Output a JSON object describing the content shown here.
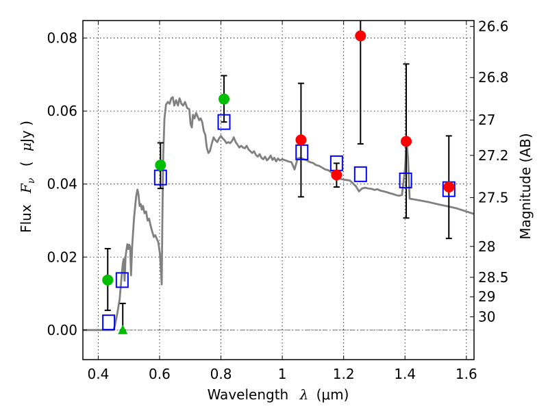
{
  "chart_data": {
    "type": "scatter",
    "title": "",
    "xlabel": "Wavelength  λ (μm)",
    "xlabel_parts": {
      "text": "Wavelength",
      "symbol": "λ",
      "unit": "(μm)"
    },
    "ylabel": "Flux  Fν  ( μJy )",
    "ylabel_parts": {
      "text": "Flux",
      "symbol": "F",
      "subscript": "ν",
      "unit_open": "(",
      "unit_mu": "μ",
      "unit_rest": "Jy )"
    },
    "y2label": "Magnitude (AB)",
    "xlim": [
      0.35,
      1.625
    ],
    "ylim": [
      -0.0081,
      0.0848
    ],
    "grid": true,
    "xticks": [
      0.4,
      0.6,
      0.8,
      1.0,
      1.2,
      1.4,
      1.6
    ],
    "xtick_labels": [
      "0.4",
      "0.6",
      "0.8",
      "1",
      "1.2",
      "1.4",
      "1.6"
    ],
    "yticks": [
      0.0,
      0.02,
      0.04,
      0.06,
      0.08
    ],
    "ytick_labels": [
      "0.00",
      "0.02",
      "0.04",
      "0.06",
      "0.08"
    ],
    "y2ticks_mag": [
      26.6,
      26.8,
      27,
      27.2,
      27.5,
      28,
      28.5,
      29,
      30
    ],
    "y2tick_labels": [
      "26.6",
      "26.8",
      "27",
      "27.2",
      "27.5",
      "28",
      "28.5",
      "29",
      "30"
    ],
    "mag_zeropoint_ujy": 23.9,
    "colors": {
      "model": "#808080",
      "green": "#00bf00",
      "red": "#ff0000",
      "blue": "#0000ff",
      "errorbar": "#000000"
    },
    "series": [
      {
        "name": "model-spectrum",
        "kind": "line",
        "points": [
          [
            0.35,
            0.0
          ],
          [
            0.4,
            0.0
          ],
          [
            0.45,
            0.0
          ],
          [
            0.455,
            0.0015
          ],
          [
            0.462,
            0.0045
          ],
          [
            0.47,
            0.0085
          ],
          [
            0.477,
            0.0155
          ],
          [
            0.48,
            0.018
          ],
          [
            0.483,
            0.0195
          ],
          [
            0.486,
            0.0135
          ],
          [
            0.489,
            0.02
          ],
          [
            0.492,
            0.022
          ],
          [
            0.495,
            0.0235
          ],
          [
            0.498,
            0.0222
          ],
          [
            0.501,
            0.0234
          ],
          [
            0.504,
            0.0228
          ],
          [
            0.507,
            0.015
          ],
          [
            0.511,
            0.0235
          ],
          [
            0.517,
            0.031
          ],
          [
            0.524,
            0.0368
          ],
          [
            0.528,
            0.0385
          ],
          [
            0.531,
            0.0372
          ],
          [
            0.535,
            0.034
          ],
          [
            0.539,
            0.0345
          ],
          [
            0.542,
            0.033
          ],
          [
            0.546,
            0.034
          ],
          [
            0.551,
            0.032
          ],
          [
            0.556,
            0.0325
          ],
          [
            0.561,
            0.03
          ],
          [
            0.566,
            0.0305
          ],
          [
            0.571,
            0.0285
          ],
          [
            0.576,
            0.027
          ],
          [
            0.581,
            0.0255
          ],
          [
            0.586,
            0.026
          ],
          [
            0.591,
            0.025
          ],
          [
            0.596,
            0.024
          ],
          [
            0.601,
            0.021
          ],
          [
            0.604,
            0.017
          ],
          [
            0.607,
            0.0125
          ],
          [
            0.609,
            0.03
          ],
          [
            0.612,
            0.048
          ],
          [
            0.616,
            0.058
          ],
          [
            0.621,
            0.0618
          ],
          [
            0.627,
            0.0625
          ],
          [
            0.633,
            0.062
          ],
          [
            0.638,
            0.0635
          ],
          [
            0.643,
            0.0638
          ],
          [
            0.648,
            0.0615
          ],
          [
            0.654,
            0.063
          ],
          [
            0.66,
            0.0615
          ],
          [
            0.665,
            0.0635
          ],
          [
            0.671,
            0.062
          ],
          [
            0.677,
            0.0615
          ],
          [
            0.683,
            0.0625
          ],
          [
            0.69,
            0.0608
          ],
          [
            0.697,
            0.0605
          ],
          [
            0.701,
            0.0565
          ],
          [
            0.705,
            0.0555
          ],
          [
            0.709,
            0.059
          ],
          [
            0.714,
            0.058
          ],
          [
            0.719,
            0.0595
          ],
          [
            0.724,
            0.0585
          ],
          [
            0.729,
            0.0575
          ],
          [
            0.734,
            0.058
          ],
          [
            0.739,
            0.057
          ],
          [
            0.744,
            0.0545
          ],
          [
            0.749,
            0.0535
          ],
          [
            0.754,
            0.05
          ],
          [
            0.759,
            0.0485
          ],
          [
            0.764,
            0.049
          ],
          [
            0.77,
            0.051
          ],
          [
            0.776,
            0.0528
          ],
          [
            0.782,
            0.052
          ],
          [
            0.788,
            0.0515
          ],
          [
            0.794,
            0.0525
          ],
          [
            0.8,
            0.0532
          ],
          [
            0.806,
            0.0525
          ],
          [
            0.812,
            0.052
          ],
          [
            0.818,
            0.0512
          ],
          [
            0.824,
            0.0515
          ],
          [
            0.83,
            0.0512
          ],
          [
            0.836,
            0.0518
          ],
          [
            0.842,
            0.0528
          ],
          [
            0.848,
            0.0515
          ],
          [
            0.854,
            0.0508
          ],
          [
            0.86,
            0.05
          ],
          [
            0.866,
            0.0505
          ],
          [
            0.872,
            0.05
          ],
          [
            0.878,
            0.0498
          ],
          [
            0.884,
            0.0505
          ],
          [
            0.89,
            0.0495
          ],
          [
            0.896,
            0.049
          ],
          [
            0.902,
            0.0485
          ],
          [
            0.908,
            0.049
          ],
          [
            0.914,
            0.048
          ],
          [
            0.92,
            0.0475
          ],
          [
            0.926,
            0.0482
          ],
          [
            0.932,
            0.0472
          ],
          [
            0.938,
            0.0468
          ],
          [
            0.944,
            0.0475
          ],
          [
            0.95,
            0.0465
          ],
          [
            0.956,
            0.047
          ],
          [
            0.962,
            0.0478
          ],
          [
            0.968,
            0.0466
          ],
          [
            0.974,
            0.0472
          ],
          [
            0.98,
            0.0462
          ],
          [
            0.986,
            0.047
          ],
          [
            0.992,
            0.0465
          ],
          [
            1.0,
            0.0468
          ],
          [
            1.01,
            0.0465
          ],
          [
            1.02,
            0.0462
          ],
          [
            1.03,
            0.046
          ],
          [
            1.04,
            0.044
          ],
          [
            1.05,
            0.047
          ],
          [
            1.06,
            0.0472
          ],
          [
            1.07,
            0.0468
          ],
          [
            1.08,
            0.0465
          ],
          [
            1.09,
            0.046
          ],
          [
            1.1,
            0.0458
          ],
          [
            1.11,
            0.0452
          ],
          [
            1.12,
            0.045
          ],
          [
            1.13,
            0.0445
          ],
          [
            1.14,
            0.044
          ],
          [
            1.15,
            0.0438
          ],
          [
            1.16,
            0.0432
          ],
          [
            1.17,
            0.0428
          ],
          [
            1.18,
            0.042
          ],
          [
            1.19,
            0.0414
          ],
          [
            1.2,
            0.0412
          ],
          [
            1.21,
            0.0411
          ],
          [
            1.22,
            0.041
          ],
          [
            1.23,
            0.0402
          ],
          [
            1.24,
            0.0394
          ],
          [
            1.25,
            0.038
          ],
          [
            1.26,
            0.0388
          ],
          [
            1.27,
            0.039
          ],
          [
            1.28,
            0.0388
          ],
          [
            1.29,
            0.0387
          ],
          [
            1.3,
            0.0384
          ],
          [
            1.31,
            0.0386
          ],
          [
            1.32,
            0.0382
          ],
          [
            1.33,
            0.038
          ],
          [
            1.34,
            0.0378
          ],
          [
            1.35,
            0.0375
          ],
          [
            1.36,
            0.0373
          ],
          [
            1.37,
            0.037
          ],
          [
            1.38,
            0.0368
          ],
          [
            1.39,
            0.037
          ],
          [
            1.4,
            0.044
          ],
          [
            1.405,
            0.052
          ],
          [
            1.41,
            0.047
          ],
          [
            1.415,
            0.036
          ],
          [
            1.43,
            0.0358
          ],
          [
            1.45,
            0.0355
          ],
          [
            1.48,
            0.035
          ],
          [
            1.51,
            0.0344
          ],
          [
            1.54,
            0.0339
          ],
          [
            1.57,
            0.0333
          ],
          [
            1.6,
            0.0325
          ],
          [
            1.625,
            0.0318
          ]
        ]
      },
      {
        "name": "green-detections",
        "kind": "circle",
        "color_key": "green",
        "points": [
          {
            "x": 0.431,
            "y": 0.0137,
            "err_hi": 0.0223,
            "err_lo": 0.0054
          },
          {
            "x": 0.603,
            "y": 0.0452,
            "err_hi": 0.0513,
            "err_lo": 0.0388
          },
          {
            "x": 0.81,
            "y": 0.0633,
            "err_hi": 0.0697,
            "err_lo": 0.057
          }
        ]
      },
      {
        "name": "green-upper-limit",
        "kind": "triangle",
        "color_key": "green",
        "points": [
          {
            "x": 0.48,
            "y": 0.0,
            "err_hi": 0.0073,
            "err_lo": 0.0
          }
        ]
      },
      {
        "name": "red-detections",
        "kind": "circle",
        "color_key": "red",
        "points": [
          {
            "x": 1.061,
            "y": 0.0521,
            "err_hi": 0.0676,
            "err_lo": 0.0365
          },
          {
            "x": 1.177,
            "y": 0.0425,
            "err_hi": 0.0457,
            "err_lo": 0.0392
          },
          {
            "x": 1.255,
            "y": 0.0806,
            "err_hi": 0.085,
            "err_lo": 0.051
          },
          {
            "x": 1.404,
            "y": 0.0517,
            "err_hi": 0.0729,
            "err_lo": 0.0307
          },
          {
            "x": 1.543,
            "y": 0.0392,
            "err_hi": 0.0532,
            "err_lo": 0.0251
          }
        ]
      },
      {
        "name": "model-bandpass-flux",
        "kind": "square",
        "color_key": "blue",
        "points": [
          {
            "x": 0.434,
            "y": 0.0021
          },
          {
            "x": 0.478,
            "y": 0.0137
          },
          {
            "x": 0.603,
            "y": 0.0418
          },
          {
            "x": 0.81,
            "y": 0.057
          },
          {
            "x": 1.064,
            "y": 0.0487
          },
          {
            "x": 1.177,
            "y": 0.0457
          },
          {
            "x": 1.255,
            "y": 0.0427
          },
          {
            "x": 1.402,
            "y": 0.041
          },
          {
            "x": 1.543,
            "y": 0.0386
          }
        ]
      }
    ]
  }
}
